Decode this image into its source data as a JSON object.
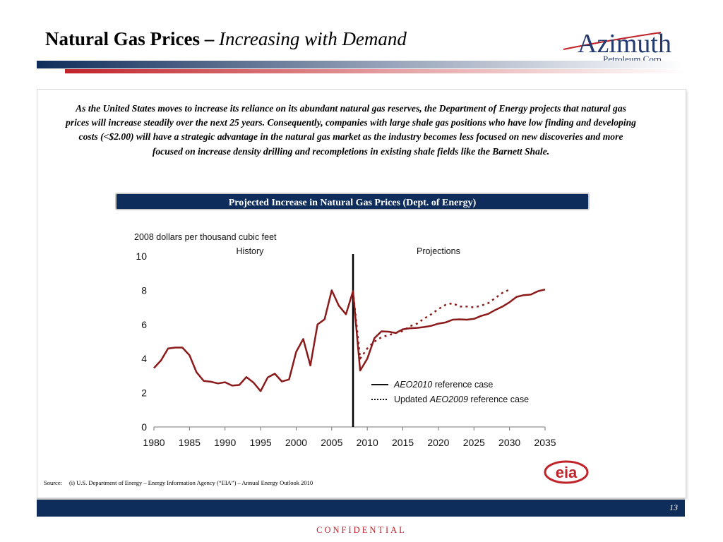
{
  "title": {
    "bold": "Natural Gas Prices –",
    "italic": "Increasing with Demand"
  },
  "logo": {
    "name": "Azimuth",
    "tagline": "Petroleum Corp."
  },
  "intro": "As the United States moves to increase its reliance on its abundant natural gas reserves, the Department of Energy projects that natural gas prices will increase steadily over the next 25 years.  Consequently, companies with large shale gas positions who have low finding and developing costs (<$2.00) will have a strategic advantage in the natural gas market as the industry becomes less focused on new discoveries and more focused on increase density drilling and recompletions in existing shale fields like the Barnett Shale.",
  "chart_header": "Projected Increase in Natural Gas Prices (Dept. of Energy)",
  "chart_data": {
    "type": "line",
    "unit_label": "2008 dollars per thousand cubic feet",
    "region_labels": [
      "History",
      "Projections"
    ],
    "divider_x": 2008,
    "xlim": [
      1980,
      2035
    ],
    "ylim": [
      0,
      10
    ],
    "x_ticks": [
      1980,
      1985,
      1990,
      1995,
      2000,
      2005,
      2010,
      2015,
      2020,
      2025,
      2030,
      2035
    ],
    "y_ticks": [
      0,
      2,
      4,
      6,
      8,
      10
    ],
    "series": [
      {
        "name": "AEO2010 reference case",
        "style": "solid",
        "color": "#8b1a1a",
        "x": [
          1980,
          1981,
          1982,
          1983,
          1984,
          1985,
          1986,
          1987,
          1988,
          1989,
          1990,
          1991,
          1992,
          1993,
          1994,
          1995,
          1996,
          1997,
          1998,
          1999,
          2000,
          2001,
          2002,
          2003,
          2004,
          2005,
          2006,
          2007,
          2008,
          2009,
          2010,
          2011,
          2012,
          2013,
          2014,
          2015,
          2016,
          2017,
          2018,
          2019,
          2020,
          2021,
          2022,
          2023,
          2024,
          2025,
          2026,
          2027,
          2028,
          2029,
          2030,
          2031,
          2032,
          2033,
          2034,
          2035
        ],
        "y": [
          3.45,
          3.9,
          4.6,
          4.65,
          4.65,
          4.2,
          3.2,
          2.7,
          2.65,
          2.55,
          2.62,
          2.42,
          2.46,
          2.92,
          2.6,
          2.1,
          2.9,
          3.12,
          2.66,
          2.78,
          4.4,
          5.15,
          3.6,
          6.0,
          6.3,
          8.0,
          7.1,
          6.6,
          7.95,
          3.3,
          4.0,
          5.2,
          5.6,
          5.58,
          5.5,
          5.72,
          5.78,
          5.8,
          5.85,
          5.92,
          6.05,
          6.12,
          6.28,
          6.3,
          6.28,
          6.33,
          6.5,
          6.62,
          6.85,
          7.05,
          7.3,
          7.62,
          7.72,
          7.75,
          7.95,
          8.05
        ]
      },
      {
        "name": "Updated AEO2009 reference case",
        "style": "dotted",
        "color": "#8b1a1a",
        "x": [
          2008,
          2009,
          2010,
          2011,
          2012,
          2013,
          2014,
          2015,
          2016,
          2017,
          2018,
          2019,
          2020,
          2021,
          2022,
          2023,
          2024,
          2025,
          2026,
          2027,
          2028,
          2029,
          2030
        ],
        "y": [
          7.95,
          4.0,
          4.6,
          5.0,
          5.25,
          5.38,
          5.5,
          5.62,
          5.9,
          6.05,
          6.35,
          6.6,
          6.9,
          7.15,
          7.25,
          7.05,
          7.05,
          7.0,
          7.1,
          7.25,
          7.55,
          7.85,
          8.05
        ]
      }
    ],
    "legend": {
      "position": "bottom-right",
      "items": [
        {
          "pre": "",
          "em": "AEO2010",
          "post": " reference case",
          "style": "solid",
          "color": "#111111"
        },
        {
          "pre": "Updated ",
          "em": "AEO2009",
          "post": " reference case",
          "style": "dotted",
          "color": "#111111"
        }
      ]
    }
  },
  "source": {
    "label": "Source:",
    "text": "(i)  U.S. Department of Energy – Energy Information Agency (“EIA”) – Annual Energy Outlook 2010"
  },
  "eia_logo": "eia",
  "page_number": "13",
  "footer": "CONFIDENTIAL",
  "colors": {
    "navy": "#0f2d5a",
    "accent_red": "#c0232a",
    "series": "#8b1a1a"
  }
}
